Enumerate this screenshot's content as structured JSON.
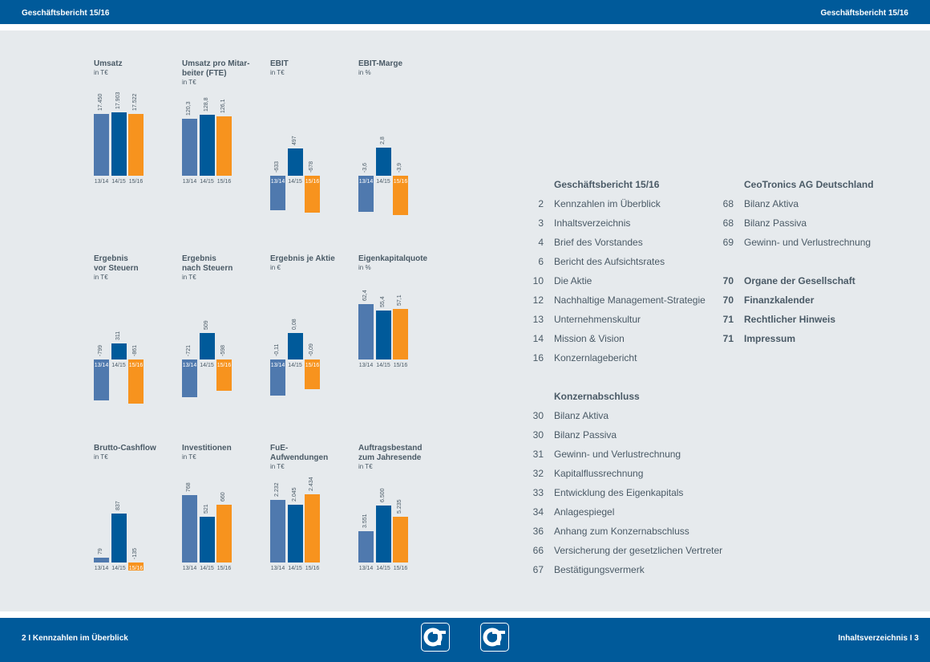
{
  "header": {
    "left": "Geschäftsbericht 15/16",
    "right": "Geschäftsbericht 15/16"
  },
  "footer": {
    "left": "2  I  Kennzahlen im Überblick",
    "right": "Inhaltsverzeichnis  I  3"
  },
  "colors": {
    "c1314": "#4f79ae",
    "c1415": "#005a9a",
    "c1516": "#f7931e",
    "brand": "#005a9a"
  },
  "chart_data": [
    {
      "type": "bar",
      "title": "Umsatz",
      "unit": "in T€",
      "categories": [
        "13/14",
        "14/15",
        "15/16"
      ],
      "values": [
        17450,
        17903,
        17522
      ],
      "labels": [
        "17.450",
        "17.903",
        "17.522"
      ]
    },
    {
      "type": "bar",
      "title": "Umsatz pro Mitar-\nbeiter (FTE)",
      "unit": "in T€",
      "categories": [
        "13/14",
        "14/15",
        "15/16"
      ],
      "values": [
        120.3,
        128.8,
        126.1
      ],
      "labels": [
        "120,3",
        "128,8",
        "126,1"
      ]
    },
    {
      "type": "bar",
      "title": "EBIT",
      "unit": "in T€",
      "categories": [
        "13/14",
        "14/15",
        "15/16"
      ],
      "values": [
        -633,
        497,
        -678
      ],
      "labels": [
        "-633",
        "497",
        "-678"
      ]
    },
    {
      "type": "bar",
      "title": "EBIT-Marge",
      "unit": "in %",
      "categories": [
        "13/14",
        "14/15",
        "15/16"
      ],
      "values": [
        -3.6,
        2.8,
        -3.9
      ],
      "labels": [
        "-3,6",
        "2,8",
        "-3,9"
      ]
    },
    {
      "type": "bar",
      "title": "Ergebnis\nvor Steuern",
      "unit": "in T€",
      "categories": [
        "13/14",
        "14/15",
        "15/16"
      ],
      "values": [
        -799,
        311,
        -861
      ],
      "labels": [
        "-799",
        "311",
        "-861"
      ]
    },
    {
      "type": "bar",
      "title": "Ergebnis\nnach Steuern",
      "unit": "in T€",
      "categories": [
        "13/14",
        "14/15",
        "15/16"
      ],
      "values": [
        -721,
        509,
        -598
      ],
      "labels": [
        "-721",
        "509",
        "-598"
      ]
    },
    {
      "type": "bar",
      "title": "Ergebnis je Aktie",
      "unit": "in €",
      "categories": [
        "13/14",
        "14/15",
        "15/16"
      ],
      "values": [
        -0.11,
        0.08,
        -0.09
      ],
      "labels": [
        "-0,11",
        "0,08",
        "-0,09"
      ]
    },
    {
      "type": "bar",
      "title": "Eigenkapitalquote",
      "unit": "in %",
      "categories": [
        "13/14",
        "14/15",
        "15/16"
      ],
      "values": [
        62.4,
        55.4,
        57.1
      ],
      "labels": [
        "62,4",
        "55,4",
        "57,1"
      ]
    },
    {
      "type": "bar",
      "title": "Brutto-Cashflow",
      "unit": "in T€",
      "categories": [
        "13/14",
        "14/15",
        "15/16"
      ],
      "values": [
        79,
        837,
        -135
      ],
      "labels": [
        "79",
        "837",
        "-135"
      ]
    },
    {
      "type": "bar",
      "title": "Investitionen",
      "unit": "in T€",
      "categories": [
        "13/14",
        "14/15",
        "15/16"
      ],
      "values": [
        768,
        521,
        660
      ],
      "labels": [
        "768",
        "521",
        "660"
      ]
    },
    {
      "type": "bar",
      "title": "FuE-\nAufwendungen",
      "unit": "in T€",
      "categories": [
        "13/14",
        "14/15",
        "15/16"
      ],
      "values": [
        2232,
        2045,
        2434
      ],
      "labels": [
        "2.232",
        "2.045",
        "2.434"
      ]
    },
    {
      "type": "bar",
      "title": "Auftragsbestand\nzum Jahresende",
      "unit": "in T€",
      "categories": [
        "13/14",
        "14/15",
        "15/16"
      ],
      "values": [
        3551,
        6500,
        5235
      ],
      "labels": [
        "3.551",
        "6.500",
        "5.235"
      ]
    }
  ],
  "toc": {
    "col1_heading": "Geschäftsbericht 15/16",
    "col1": [
      [
        "2",
        "Kennzahlen im Überblick"
      ],
      [
        "3",
        "Inhaltsverzeichnis"
      ],
      [
        "4",
        "Brief des Vorstandes"
      ],
      [
        "6",
        "Bericht des Aufsichtsrates"
      ],
      [
        "10",
        "Die Aktie"
      ],
      [
        "12",
        "Nachhaltige Management-Strategie"
      ],
      [
        "13",
        "Unternehmenskultur"
      ],
      [
        "14",
        "Mission & Vision"
      ],
      [
        "16",
        "Konzernlagebericht"
      ]
    ],
    "col1b_heading": "Konzernabschluss",
    "col1b": [
      [
        "30",
        "Bilanz Aktiva"
      ],
      [
        "30",
        "Bilanz Passiva"
      ],
      [
        "31",
        "Gewinn- und Verlustrechnung"
      ],
      [
        "32",
        "Kapitalflussrechnung"
      ],
      [
        "33",
        "Entwicklung des Eigenkapitals"
      ],
      [
        "34",
        "Anlagespiegel"
      ],
      [
        "36",
        "Anhang zum Konzernabschluss"
      ],
      [
        "66",
        "Versicherung der gesetzlichen Vertreter"
      ],
      [
        "67",
        "Bestätigungsvermerk"
      ]
    ],
    "col2_heading": "CeoTronics AG Deutschland",
    "col2": [
      [
        "68",
        "Bilanz Aktiva"
      ],
      [
        "68",
        "Bilanz Passiva"
      ],
      [
        "69",
        "Gewinn- und Verlustrechnung"
      ]
    ],
    "col2b": [
      [
        "70",
        "Organe der Gesellschaft"
      ],
      [
        "70",
        "Finanzkalender"
      ],
      [
        "71",
        "Rechtlicher Hinweis"
      ],
      [
        "71",
        "Impressum"
      ]
    ]
  }
}
